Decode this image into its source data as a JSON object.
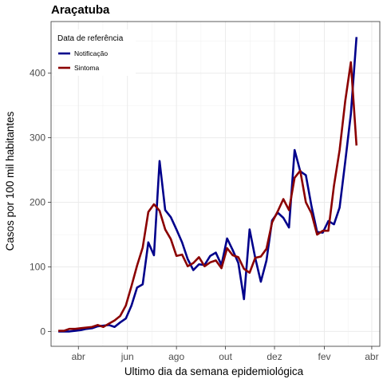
{
  "chart_data": {
    "type": "line",
    "title": "Araçatuba",
    "xlabel": "Ultimo dia da semana epidemiológica",
    "ylabel": "Casos por 100 mil habitantes",
    "x_ticks": [
      {
        "date": "2020-04-01",
        "label": "abr"
      },
      {
        "date": "2020-06-01",
        "label": "jun"
      },
      {
        "date": "2020-08-01",
        "label": "ago"
      },
      {
        "date": "2020-10-01",
        "label": "out"
      },
      {
        "date": "2020-12-01",
        "label": "dez"
      },
      {
        "date": "2021-02-01",
        "label": "fev"
      },
      {
        "date": "2021-04-01",
        "label": "abr"
      }
    ],
    "y_ticks": [
      0,
      100,
      200,
      300,
      400
    ],
    "xlim": [
      "2020-02-27",
      "2021-04-11"
    ],
    "ylim": [
      -23,
      480
    ],
    "grid": true,
    "legend": {
      "title": "Data de referência",
      "position": "top-left"
    },
    "series": [
      {
        "name": "Notificação",
        "color": "#00008B",
        "points": [
          [
            "2020-03-07",
            0
          ],
          [
            "2020-03-14",
            0
          ],
          [
            "2020-03-21",
            0
          ],
          [
            "2020-03-28",
            1
          ],
          [
            "2020-04-04",
            2
          ],
          [
            "2020-04-11",
            4
          ],
          [
            "2020-04-18",
            5
          ],
          [
            "2020-04-25",
            8
          ],
          [
            "2020-05-02",
            9
          ],
          [
            "2020-05-09",
            10
          ],
          [
            "2020-05-16",
            7
          ],
          [
            "2020-05-23",
            14
          ],
          [
            "2020-05-30",
            20
          ],
          [
            "2020-06-06",
            40
          ],
          [
            "2020-06-13",
            68
          ],
          [
            "2020-06-20",
            73
          ],
          [
            "2020-06-27",
            138
          ],
          [
            "2020-07-04",
            118
          ],
          [
            "2020-07-11",
            264
          ],
          [
            "2020-07-18",
            188
          ],
          [
            "2020-07-25",
            177
          ],
          [
            "2020-08-01",
            158
          ],
          [
            "2020-08-08",
            138
          ],
          [
            "2020-08-15",
            112
          ],
          [
            "2020-08-22",
            95
          ],
          [
            "2020-08-29",
            104
          ],
          [
            "2020-09-05",
            103
          ],
          [
            "2020-09-12",
            117
          ],
          [
            "2020-09-19",
            122
          ],
          [
            "2020-09-26",
            103
          ],
          [
            "2020-10-03",
            144
          ],
          [
            "2020-10-10",
            126
          ],
          [
            "2020-10-17",
            106
          ],
          [
            "2020-10-24",
            50
          ],
          [
            "2020-10-31",
            158
          ],
          [
            "2020-11-07",
            114
          ],
          [
            "2020-11-14",
            77
          ],
          [
            "2020-11-21",
            110
          ],
          [
            "2020-11-28",
            172
          ],
          [
            "2020-12-05",
            184
          ],
          [
            "2020-12-12",
            176
          ],
          [
            "2020-12-19",
            161
          ],
          [
            "2020-12-26",
            281
          ],
          [
            "2021-01-02",
            248
          ],
          [
            "2021-01-09",
            242
          ],
          [
            "2021-01-16",
            194
          ],
          [
            "2021-01-23",
            154
          ],
          [
            "2021-01-30",
            153
          ],
          [
            "2021-02-06",
            171
          ],
          [
            "2021-02-13",
            166
          ],
          [
            "2021-02-20",
            192
          ],
          [
            "2021-02-27",
            263
          ],
          [
            "2021-03-06",
            337
          ],
          [
            "2021-03-13",
            456
          ]
        ]
      },
      {
        "name": "Sintoma",
        "color": "#8B0000",
        "points": [
          [
            "2020-03-07",
            1
          ],
          [
            "2020-03-14",
            1
          ],
          [
            "2020-03-21",
            4
          ],
          [
            "2020-03-28",
            4
          ],
          [
            "2020-04-04",
            5
          ],
          [
            "2020-04-11",
            6
          ],
          [
            "2020-04-18",
            7
          ],
          [
            "2020-04-25",
            10
          ],
          [
            "2020-05-02",
            7
          ],
          [
            "2020-05-09",
            12
          ],
          [
            "2020-05-16",
            17
          ],
          [
            "2020-05-23",
            24
          ],
          [
            "2020-05-30",
            40
          ],
          [
            "2020-06-06",
            70
          ],
          [
            "2020-06-13",
            102
          ],
          [
            "2020-06-20",
            130
          ],
          [
            "2020-06-27",
            185
          ],
          [
            "2020-07-04",
            197
          ],
          [
            "2020-07-11",
            187
          ],
          [
            "2020-07-18",
            158
          ],
          [
            "2020-07-25",
            143
          ],
          [
            "2020-08-01",
            117
          ],
          [
            "2020-08-08",
            119
          ],
          [
            "2020-08-15",
            101
          ],
          [
            "2020-08-22",
            106
          ],
          [
            "2020-08-29",
            115
          ],
          [
            "2020-09-05",
            101
          ],
          [
            "2020-09-12",
            107
          ],
          [
            "2020-09-19",
            110
          ],
          [
            "2020-09-26",
            98
          ],
          [
            "2020-10-03",
            129
          ],
          [
            "2020-10-10",
            118
          ],
          [
            "2020-10-17",
            115
          ],
          [
            "2020-10-24",
            97
          ],
          [
            "2020-10-31",
            91
          ],
          [
            "2020-11-07",
            114
          ],
          [
            "2020-11-14",
            116
          ],
          [
            "2020-11-21",
            128
          ],
          [
            "2020-11-28",
            169
          ],
          [
            "2020-12-05",
            186
          ],
          [
            "2020-12-12",
            205
          ],
          [
            "2020-12-19",
            188
          ],
          [
            "2020-12-26",
            238
          ],
          [
            "2021-01-02",
            249
          ],
          [
            "2021-01-09",
            200
          ],
          [
            "2021-01-16",
            183
          ],
          [
            "2021-01-23",
            150
          ],
          [
            "2021-01-30",
            156
          ],
          [
            "2021-02-06",
            156
          ],
          [
            "2021-02-13",
            226
          ],
          [
            "2021-02-20",
            281
          ],
          [
            "2021-02-27",
            357
          ],
          [
            "2021-03-06",
            417
          ],
          [
            "2021-03-13",
            288
          ]
        ]
      }
    ]
  }
}
